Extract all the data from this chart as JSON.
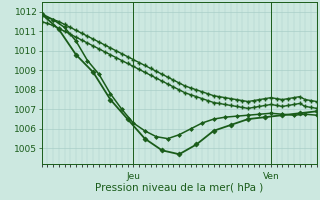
{
  "background_color": "#cce8e0",
  "grid_color": "#aacfc8",
  "line_color": "#1a5c1a",
  "marker_color": "#1a5c1a",
  "xlabel_text": "Pression niveau de la mer( hPa )",
  "xlabel_jeu": "Jeu",
  "xlabel_ven": "Ven",
  "ylim": [
    1004.2,
    1012.5
  ],
  "yticks": [
    1005,
    1006,
    1007,
    1008,
    1009,
    1010,
    1011,
    1012
  ],
  "label_fontsize": 7.5,
  "tick_fontsize": 6.5,
  "n_points": 48,
  "jeu_x": 16,
  "ven_x": 40,
  "xlim": [
    0,
    48
  ],
  "series": [
    {
      "x": [
        0,
        1,
        2,
        3,
        4,
        5,
        6,
        7,
        8,
        9,
        10,
        11,
        12,
        13,
        14,
        15,
        16,
        17,
        18,
        19,
        20,
        21,
        22,
        23,
        24,
        25,
        26,
        27,
        28,
        29,
        30,
        31,
        32,
        33,
        34,
        35,
        36,
        37,
        38,
        39,
        40,
        41,
        42,
        43,
        44,
        45,
        46,
        47,
        48
      ],
      "y": [
        1011.8,
        1011.7,
        1011.6,
        1011.5,
        1011.35,
        1011.2,
        1011.05,
        1010.9,
        1010.75,
        1010.6,
        1010.45,
        1010.3,
        1010.15,
        1010.0,
        1009.85,
        1009.7,
        1009.55,
        1009.4,
        1009.25,
        1009.1,
        1008.95,
        1008.8,
        1008.65,
        1008.5,
        1008.35,
        1008.2,
        1008.1,
        1008.0,
        1007.9,
        1007.8,
        1007.7,
        1007.65,
        1007.6,
        1007.55,
        1007.5,
        1007.45,
        1007.4,
        1007.45,
        1007.5,
        1007.55,
        1007.6,
        1007.55,
        1007.5,
        1007.55,
        1007.6,
        1007.65,
        1007.5,
        1007.45,
        1007.4
      ],
      "lw": 1.0,
      "marker": "+",
      "ms": 3.5,
      "mew": 1.0
    },
    {
      "x": [
        0,
        1,
        2,
        3,
        4,
        5,
        6,
        7,
        8,
        9,
        10,
        11,
        12,
        13,
        14,
        15,
        16,
        17,
        18,
        19,
        20,
        21,
        22,
        23,
        24,
        25,
        26,
        27,
        28,
        29,
        30,
        31,
        32,
        33,
        34,
        35,
        36,
        37,
        38,
        39,
        40,
        41,
        42,
        43,
        44,
        45,
        46,
        47,
        48
      ],
      "y": [
        1011.5,
        1011.4,
        1011.3,
        1011.15,
        1011.0,
        1010.85,
        1010.7,
        1010.55,
        1010.4,
        1010.25,
        1010.1,
        1009.95,
        1009.8,
        1009.65,
        1009.5,
        1009.35,
        1009.2,
        1009.05,
        1008.9,
        1008.75,
        1008.6,
        1008.45,
        1008.3,
        1008.15,
        1008.0,
        1007.85,
        1007.75,
        1007.65,
        1007.55,
        1007.45,
        1007.35,
        1007.3,
        1007.25,
        1007.2,
        1007.15,
        1007.1,
        1007.05,
        1007.1,
        1007.15,
        1007.2,
        1007.25,
        1007.2,
        1007.15,
        1007.2,
        1007.25,
        1007.3,
        1007.15,
        1007.1,
        1007.05
      ],
      "lw": 1.0,
      "marker": "+",
      "ms": 3.5,
      "mew": 1.0
    },
    {
      "x": [
        0,
        2,
        4,
        6,
        8,
        10,
        12,
        14,
        16,
        18,
        20,
        22,
        24,
        26,
        28,
        30,
        32,
        34,
        36,
        38,
        40,
        42,
        44,
        46,
        48
      ],
      "y": [
        1011.9,
        1011.6,
        1011.2,
        1010.5,
        1009.5,
        1008.8,
        1007.8,
        1007.0,
        1006.3,
        1005.9,
        1005.6,
        1005.5,
        1005.7,
        1006.0,
        1006.3,
        1006.5,
        1006.6,
        1006.65,
        1006.7,
        1006.75,
        1006.8,
        1006.75,
        1006.7,
        1006.75,
        1006.7
      ],
      "lw": 1.1,
      "marker": "D",
      "ms": 2.0,
      "mew": 0.5
    },
    {
      "x": [
        0,
        3,
        6,
        9,
        12,
        15,
        18,
        21,
        24,
        27,
        30,
        33,
        36,
        39,
        42,
        45,
        48
      ],
      "y": [
        1011.9,
        1011.1,
        1009.8,
        1008.9,
        1007.5,
        1006.5,
        1005.5,
        1004.9,
        1004.7,
        1005.2,
        1005.9,
        1006.2,
        1006.5,
        1006.6,
        1006.7,
        1006.8,
        1006.9
      ],
      "lw": 1.3,
      "marker": "D",
      "ms": 2.5,
      "mew": 0.6
    }
  ]
}
